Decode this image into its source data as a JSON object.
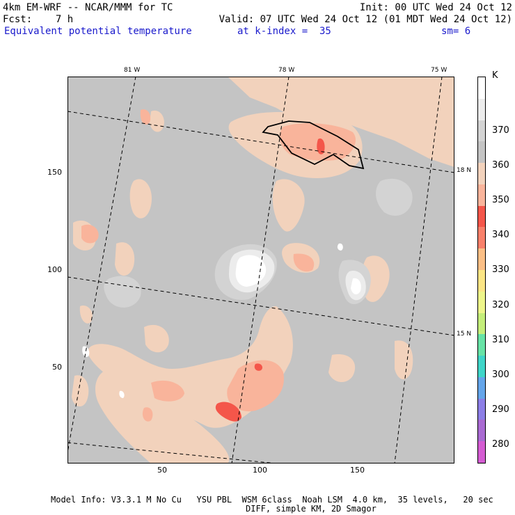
{
  "header": {
    "model": "4km EM-WRF -- NCAR/MMM for TC",
    "init": "Init: 00 UTC Wed 24 Oct 12",
    "fcst": "Fcst:    7 h",
    "valid": "Valid: 07 UTC Wed 24 Oct 12 (01 MDT Wed 24 Oct 12)",
    "field": "Equivalent potential temperature",
    "level": "at k-index =  35",
    "smoothing": "sm= 6"
  },
  "map": {
    "lon_labels": [
      "81 W",
      "78 W",
      "75 W"
    ],
    "lat_labels": [
      "18 N",
      "15 N"
    ],
    "x_ticks": [
      "50",
      "100",
      "150"
    ],
    "y_ticks": [
      "150",
      "100",
      "50"
    ]
  },
  "colorbar": {
    "unit": "K",
    "labels": [
      "370",
      "360",
      "350",
      "340",
      "330",
      "320",
      "310",
      "300",
      "290",
      "280"
    ],
    "colors": [
      "#ffffff",
      "#ececec",
      "#d3d3d3",
      "#c4c4c4",
      "#f2d2bc",
      "#f9b49b",
      "#f4564a",
      "#f8806a",
      "#fbbf86",
      "#fbe585",
      "#edf58a",
      "#c4ee7a",
      "#67e3a6",
      "#3fd5c8",
      "#64a5ea",
      "#8c7ee6",
      "#a96ad2",
      "#d45cd2"
    ]
  },
  "footer": {
    "line1": "Model Info: V3.3.1 M No Cu   YSU PBL  WSM 6class  Noah LSM  4.0 km,  35 levels,   20 sec",
    "line2": "DIFF, simple KM, 2D Smagor"
  },
  "colors": {
    "field_base": "#c4c4c4",
    "field_warm": "#f2d2bc",
    "field_350": "#f9b49b",
    "field_340": "#f4564a",
    "field_light": "#d3d3d3",
    "field_high": "#ececec",
    "field_max": "#ffffff",
    "header_blue": "#1a1acc"
  }
}
